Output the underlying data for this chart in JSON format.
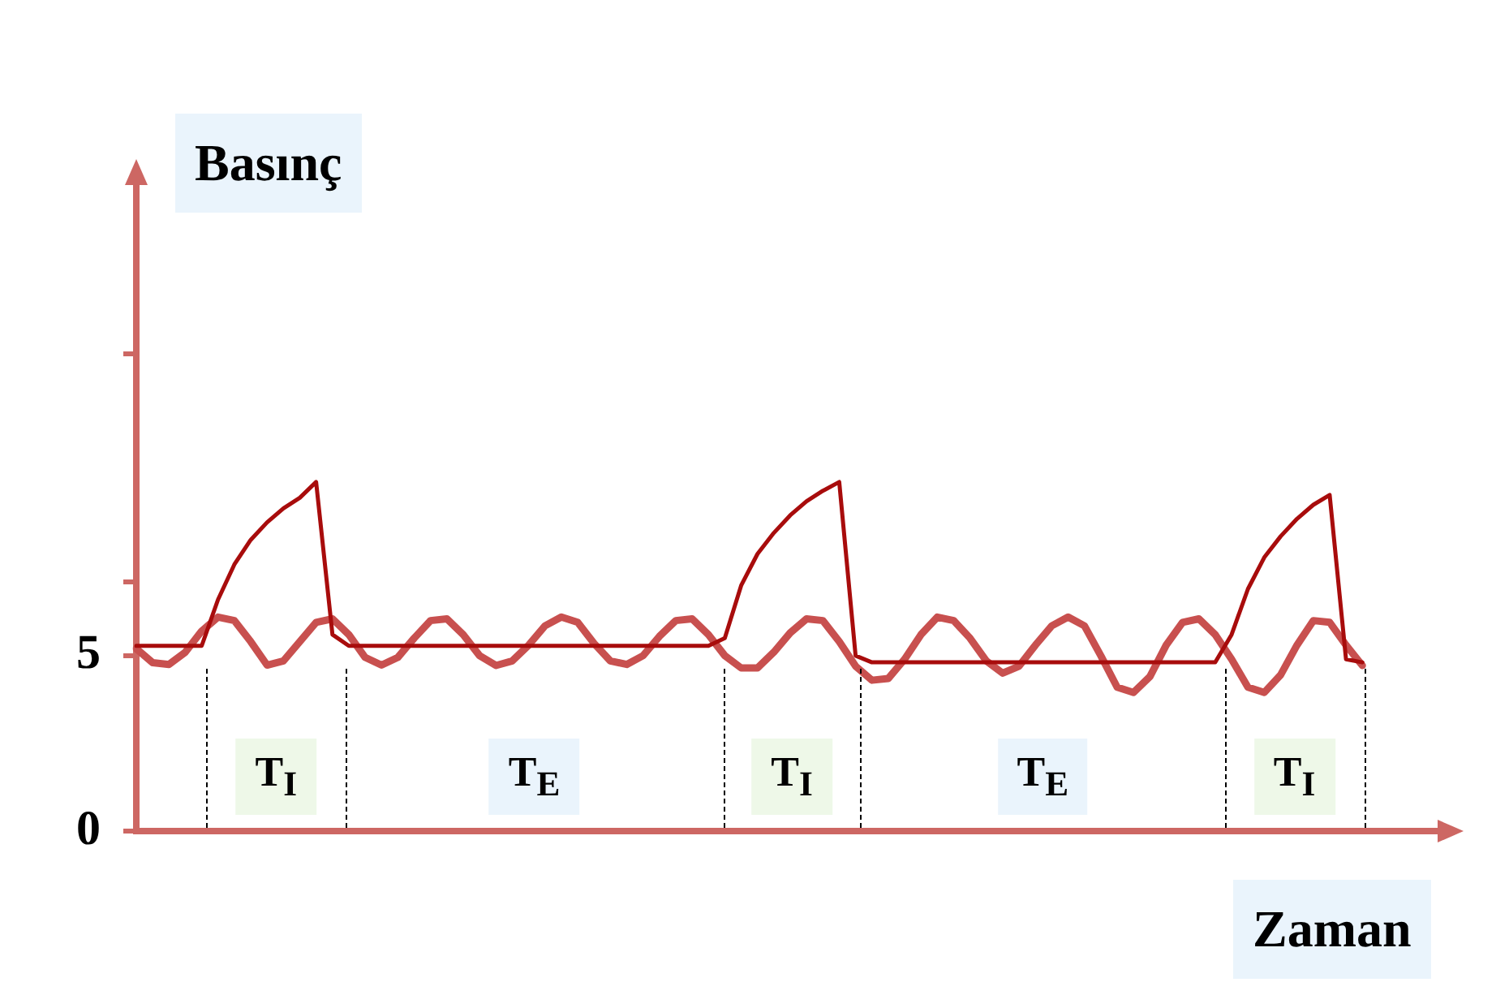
{
  "chart_data": {
    "type": "line",
    "xlabel": "Zaman",
    "ylabel": "Basınç",
    "categories": [
      null,
      null,
      null,
      null,
      null,
      null,
      null,
      null,
      null,
      null,
      null,
      null,
      null,
      null,
      null,
      null,
      null,
      null,
      null,
      null,
      null,
      null,
      null,
      null,
      null,
      null,
      null,
      null,
      null,
      null,
      null,
      null,
      null,
      null,
      null,
      null,
      null,
      null,
      null,
      null,
      null,
      null,
      null,
      null,
      null,
      null,
      null,
      null,
      null,
      null,
      null,
      null,
      null,
      null,
      null,
      null,
      null,
      null,
      null,
      null,
      null,
      null,
      null,
      null,
      null,
      null,
      null,
      null,
      null,
      null,
      null,
      null,
      null,
      null,
      null,
      null,
      null,
      null,
      null,
      null,
      null
    ],
    "ylim": [
      0,
      18.6
    ],
    "yticks": [
      0,
      5,
      {
        "value": 7.1,
        "label": null
      },
      {
        "value": 13.6,
        "label": null
      }
    ],
    "tick_labels": "y",
    "grid": false,
    "legend": false,
    "marker": "none",
    "line_style": "solid",
    "series": [
      {
        "color": "#a80c0c",
        "values": [
          5.28,
          5.28,
          5.28,
          5.28,
          5.28,
          6.6,
          7.6,
          8.3,
          8.8,
          9.2,
          9.5,
          9.95,
          5.6,
          5.28,
          5.28,
          5.28,
          5.28,
          5.28,
          5.28,
          5.28,
          5.28,
          5.28,
          5.28,
          5.28,
          5.28,
          5.28,
          5.28,
          5.28,
          5.28,
          5.28,
          5.28,
          5.28,
          5.28,
          5.28,
          5.28,
          5.28,
          5.5,
          7.0,
          7.9,
          8.5,
          9.0,
          9.4,
          9.7,
          9.95,
          5.0,
          4.81,
          4.81,
          4.81,
          4.81,
          4.81,
          4.81,
          4.81,
          4.81,
          4.81,
          4.81,
          4.81,
          4.81,
          4.81,
          4.81,
          4.81,
          4.81,
          4.81,
          4.81,
          4.81,
          4.81,
          4.81,
          4.81,
          5.6,
          6.9,
          7.8,
          8.4,
          8.9,
          9.3,
          9.58,
          4.9,
          4.81,
          null,
          null,
          null,
          null,
          null
        ]
      },
      {
        "color": "#c8504f",
        "values": [
          5.2,
          4.8,
          4.75,
          5.1,
          5.7,
          6.1,
          6.0,
          5.4,
          4.73,
          4.85,
          5.4,
          5.95,
          6.05,
          5.6,
          4.95,
          4.73,
          4.95,
          5.5,
          6.0,
          6.05,
          5.6,
          5.0,
          4.72,
          4.85,
          5.3,
          5.85,
          6.1,
          5.95,
          5.35,
          4.85,
          4.75,
          5.0,
          5.55,
          6.0,
          6.05,
          5.6,
          5.0,
          4.65,
          4.65,
          5.1,
          5.65,
          6.05,
          6.0,
          5.4,
          4.7,
          4.3,
          4.35,
          4.9,
          5.6,
          6.1,
          6.0,
          5.5,
          4.85,
          4.5,
          4.7,
          5.3,
          5.85,
          6.1,
          5.85,
          5.0,
          4.1,
          3.95,
          4.4,
          5.3,
          5.95,
          6.05,
          5.6,
          4.9,
          4.1,
          3.95,
          4.45,
          5.3,
          6.0,
          5.95,
          5.3,
          4.72,
          null,
          null,
          null,
          null,
          null
        ]
      }
    ],
    "annotations": [
      "T$_{I}$",
      "T$_{E}$",
      "T$_{I}$",
      "T$_{E}$",
      "T$_{I}$"
    ]
  }
}
